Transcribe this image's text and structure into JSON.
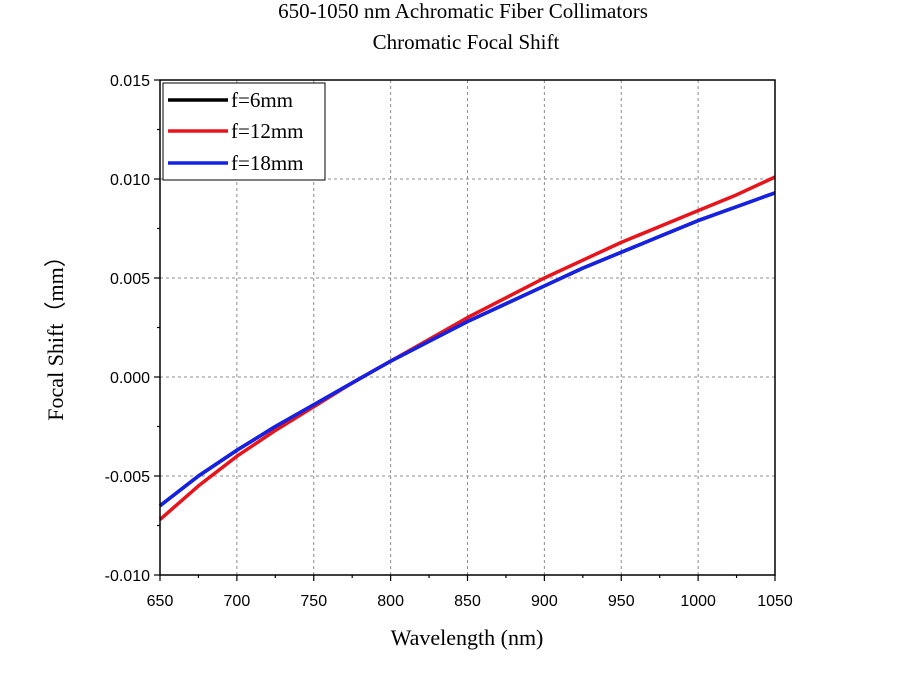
{
  "chart_data": {
    "type": "line",
    "title": "650-1050 nm Achromatic Fiber Collimators",
    "subtitle": "Chromatic Focal Shift",
    "xlabel": "Wavelength (nm)",
    "ylabel": "Focal Shift（mm）",
    "xlim": [
      650,
      1050
    ],
    "ylim": [
      -0.01,
      0.015
    ],
    "x_ticks": [
      "650",
      "700",
      "750",
      "800",
      "850",
      "900",
      "950",
      "1000",
      "1050"
    ],
    "y_ticks": [
      "-0.010",
      "-0.005",
      "0.000",
      "0.005",
      "0.010",
      "0.015"
    ],
    "grid": true,
    "legend_position": "top-left",
    "x": [
      650,
      675,
      700,
      725,
      750,
      775,
      800,
      825,
      850,
      875,
      900,
      925,
      950,
      975,
      1000,
      1025,
      1050
    ],
    "series": [
      {
        "name": "f=6mm",
        "color": "#000000",
        "values": [
          -0.0065,
          -0.005,
          -0.0037,
          -0.0025,
          -0.0014,
          -0.0003,
          0.0008,
          0.0018,
          0.0028,
          0.0037,
          0.0046,
          0.0055,
          0.0063,
          0.0071,
          0.0079,
          0.0086,
          0.0093
        ]
      },
      {
        "name": "f=12mm",
        "color": "#e8141c",
        "values": [
          -0.0072,
          -0.0055,
          -0.004,
          -0.0027,
          -0.0015,
          -0.0003,
          0.0008,
          0.0019,
          0.003,
          0.004,
          0.005,
          0.0059,
          0.0068,
          0.0076,
          0.0084,
          0.0092,
          0.0101
        ]
      },
      {
        "name": "f=18mm",
        "color": "#1522e6",
        "values": [
          -0.0065,
          -0.005,
          -0.0037,
          -0.0025,
          -0.0014,
          -0.0003,
          0.0008,
          0.0018,
          0.0028,
          0.0037,
          0.0046,
          0.0055,
          0.0063,
          0.0071,
          0.0079,
          0.0086,
          0.0093
        ]
      }
    ]
  }
}
